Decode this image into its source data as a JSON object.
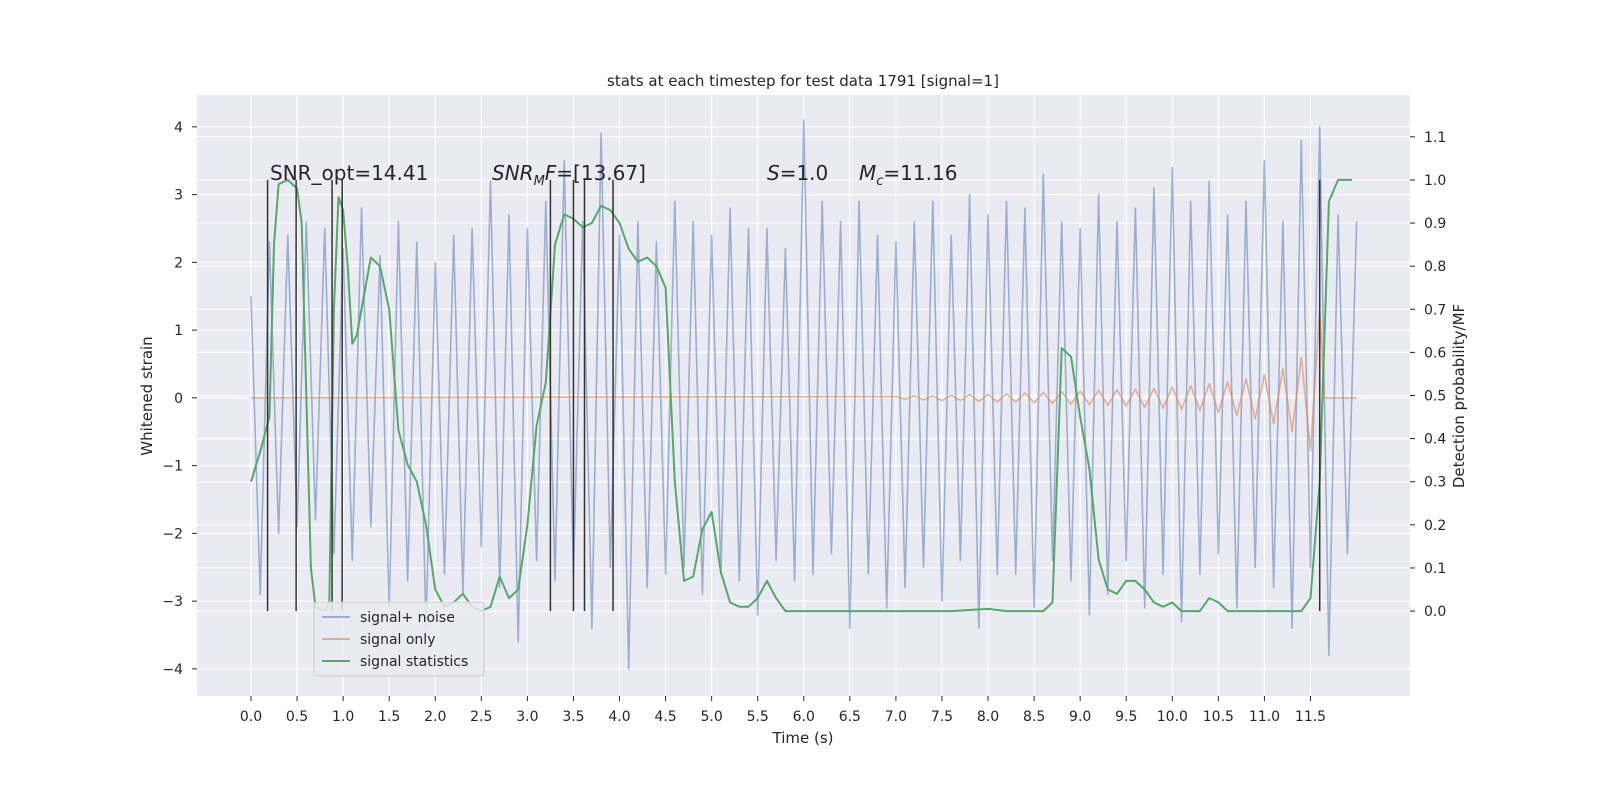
{
  "chart_data": {
    "type": "line",
    "title": "stats at each timestep for test data 1791 [signal=1]",
    "xlabel": "Time (s)",
    "ylabel": "Whitened strain",
    "y2label": "Detection probability/MF",
    "xlim": [
      -0.586,
      12.58
    ],
    "ylim": [
      -4.4,
      4.47
    ],
    "y2lim": [
      -0.197,
      1.197
    ],
    "xticks": [
      {
        "value": 0,
        "label": "0.0"
      },
      0.5,
      {
        "value": 1,
        "label": "1.0"
      },
      1.5,
      {
        "value": 2,
        "label": "2.0"
      },
      2.5,
      {
        "value": 3,
        "label": "3.0"
      },
      3.5,
      {
        "value": 4,
        "label": "4.0"
      },
      4.5,
      {
        "value": 5,
        "label": "5.0"
      },
      5.5,
      {
        "value": 6,
        "label": "6.0"
      },
      6.5,
      {
        "value": 7,
        "label": "7.0"
      },
      7.5,
      {
        "value": 8,
        "label": "8.0"
      },
      8.5,
      {
        "value": 9,
        "label": "9.0"
      },
      9.5,
      {
        "value": 10,
        "label": "10.0"
      },
      10.5,
      {
        "value": 11,
        "label": "11.0"
      },
      11.5
    ],
    "yticks": [
      {
        "value": -4,
        "label": "−4"
      },
      {
        "value": -3,
        "label": "−3"
      },
      {
        "value": -2,
        "label": "−2"
      },
      {
        "value": -1,
        "label": "−1"
      },
      0,
      1,
      2,
      3,
      4
    ],
    "y2ticks": [
      {
        "value": 0,
        "label": "0.0"
      },
      0.1,
      0.2,
      0.3,
      0.4,
      0.5,
      0.6,
      0.7,
      0.8,
      0.9,
      {
        "value": 1,
        "label": "1.0"
      },
      1.1
    ],
    "grid": true,
    "legend": "lower left",
    "annotations": [
      [
        "SNR_opt=14.41"
      ],
      [
        "SNR",
        "M",
        "F",
        "=[13.67]"
      ],
      [
        "S",
        "=1.0"
      ],
      [
        "M",
        "c",
        "=11.16"
      ]
    ],
    "vlines": {
      "x": [
        0.18,
        0.49,
        0.88,
        0.99,
        3.25,
        3.5,
        3.62,
        3.93,
        11.6
      ],
      "ymin": 0,
      "ymax": 1,
      "axis": "y2",
      "color": "#333333"
    },
    "series": [
      {
        "name": "signal+ noise",
        "color": "#4c72b0",
        "opacity": 0.5,
        "x": [
          0,
          0.1,
          0.2,
          0.3,
          0.4,
          0.5,
          0.6,
          0.7,
          0.8,
          0.9,
          1,
          1.1,
          1.2,
          1.3,
          1.4,
          1.5,
          1.6,
          1.7,
          1.8,
          1.9,
          2,
          2.1,
          2.2,
          2.3,
          2.4,
          2.5,
          2.6,
          2.7,
          2.8,
          2.9,
          3,
          3.1,
          3.2,
          3.3,
          3.4,
          3.5,
          3.6,
          3.7,
          3.8,
          3.9,
          4,
          4.1,
          4.2,
          4.3,
          4.4,
          4.5,
          4.6,
          4.7,
          4.8,
          4.9,
          5,
          5.1,
          5.2,
          5.3,
          5.4,
          5.5,
          5.6,
          5.7,
          5.8,
          5.9,
          6,
          6.1,
          6.2,
          6.3,
          6.4,
          6.5,
          6.6,
          6.7,
          6.8,
          6.9,
          7,
          7.1,
          7.2,
          7.3,
          7.4,
          7.5,
          7.6,
          7.7,
          7.8,
          7.9,
          8,
          8.1,
          8.2,
          8.3,
          8.4,
          8.5,
          8.6,
          8.7,
          8.8,
          8.9,
          9,
          9.1,
          9.2,
          9.3,
          9.4,
          9.5,
          9.6,
          9.7,
          9.8,
          9.9,
          10,
          10.1,
          10.2,
          10.3,
          10.4,
          10.5,
          10.6,
          10.7,
          10.8,
          10.9,
          11,
          11.1,
          11.2,
          11.3,
          11.4,
          11.5,
          11.6,
          11.7,
          11.8,
          11.9,
          12
        ],
        "values": [
          1.5,
          -2.9,
          2.3,
          -2.0,
          2.4,
          -1.9,
          2.6,
          -1.8,
          2.5,
          -2.3,
          2.2,
          -2.4,
          2.8,
          -1.9,
          2.1,
          -3.1,
          2.6,
          -2.7,
          2.3,
          -3.4,
          2.0,
          -2.6,
          2.4,
          -2.9,
          2.5,
          -2.2,
          3.2,
          -2.8,
          2.7,
          -3.6,
          2.5,
          -2.4,
          2.9,
          -2.7,
          3.5,
          -2.6,
          2.6,
          -3.4,
          3.9,
          -2.5,
          2.4,
          -4.0,
          2.6,
          -2.8,
          2.3,
          -2.6,
          2.9,
          -2.5,
          2.6,
          -2.9,
          2.4,
          -2.6,
          2.8,
          -2.7,
          2.5,
          -3.2,
          2.5,
          -2.4,
          2.2,
          -2.7,
          4.1,
          -2.6,
          2.9,
          -2.3,
          2.6,
          -3.4,
          2.9,
          -2.6,
          2.4,
          -3.1,
          2.3,
          -2.8,
          2.6,
          -2.5,
          2.9,
          -3.0,
          2.4,
          -2.4,
          3.0,
          -3.4,
          2.7,
          -2.6,
          2.9,
          -2.6,
          2.8,
          -3.1,
          3.3,
          -2.4,
          2.6,
          -2.7,
          2.5,
          -3.2,
          3.0,
          -2.9,
          2.6,
          -2.4,
          2.8,
          -3.1,
          3.1,
          -2.6,
          3.4,
          -3.3,
          2.9,
          -2.6,
          3.2,
          -2.3,
          2.7,
          -3.1,
          2.9,
          -2.5,
          3.5,
          -2.8,
          2.6,
          -3.4,
          3.8,
          -2.5,
          4.0,
          -3.8,
          2.7,
          -2.3,
          2.6
        ]
      },
      {
        "name": "signal only",
        "color": "#dd8452",
        "opacity": 0.6,
        "x": [
          0,
          7,
          7.1,
          7.2,
          7.3,
          7.4,
          7.5,
          7.6,
          7.7,
          7.8,
          7.9,
          8,
          8.1,
          8.2,
          8.3,
          8.4,
          8.5,
          8.6,
          8.7,
          8.8,
          8.9,
          9,
          9.1,
          9.2,
          9.3,
          9.4,
          9.5,
          9.6,
          9.7,
          9.8,
          9.9,
          10,
          10.1,
          10.2,
          10.3,
          10.4,
          10.5,
          10.6,
          10.7,
          10.8,
          10.9,
          11,
          11.1,
          11.2,
          11.3,
          11.4,
          11.5,
          11.6,
          11.65,
          12
        ],
        "values": [
          0,
          0.02,
          -0.02,
          0.03,
          -0.03,
          0.03,
          -0.04,
          0.04,
          -0.04,
          0.05,
          -0.05,
          0.05,
          -0.06,
          0.06,
          -0.06,
          0.07,
          -0.07,
          0.08,
          -0.08,
          0.09,
          -0.09,
          0.1,
          -0.1,
          0.11,
          -0.11,
          0.12,
          -0.12,
          0.13,
          -0.14,
          0.14,
          -0.15,
          0.16,
          -0.17,
          0.18,
          -0.19,
          0.21,
          -0.22,
          0.24,
          -0.26,
          0.28,
          -0.31,
          0.34,
          -0.38,
          0.43,
          -0.5,
          0.6,
          -0.78,
          1.3,
          0,
          0
        ]
      },
      {
        "name": "signal statistics",
        "color": "#55a868",
        "opacity": 1,
        "axis": "y2",
        "x": [
          0,
          0.1,
          0.2,
          0.25,
          0.3,
          0.4,
          0.5,
          0.55,
          0.6,
          0.65,
          0.7,
          0.8,
          0.85,
          0.9,
          0.95,
          1,
          1.05,
          1.1,
          1.15,
          1.2,
          1.3,
          1.4,
          1.5,
          1.6,
          1.7,
          1.8,
          1.9,
          2,
          2.1,
          2.2,
          2.3,
          2.4,
          2.5,
          2.6,
          2.7,
          2.8,
          2.9,
          3,
          3.1,
          3.2,
          3.3,
          3.4,
          3.5,
          3.6,
          3.7,
          3.8,
          3.9,
          4,
          4.1,
          4.2,
          4.3,
          4.4,
          4.5,
          4.6,
          4.7,
          4.8,
          4.9,
          5,
          5.1,
          5.2,
          5.3,
          5.4,
          5.5,
          5.6,
          5.7,
          5.8,
          6,
          7,
          7.6,
          8,
          8.2,
          8.6,
          8.7,
          8.8,
          8.9,
          9,
          9.1,
          9.2,
          9.3,
          9.4,
          9.5,
          9.6,
          9.7,
          9.8,
          9.9,
          10,
          10.1,
          10.2,
          10.3,
          10.4,
          10.5,
          10.6,
          11,
          11.4,
          11.5,
          11.6,
          11.7,
          11.8,
          11.95
        ],
        "values": [
          0.3,
          0.37,
          0.45,
          0.85,
          0.99,
          1.0,
          0.98,
          0.9,
          0.5,
          0.1,
          0.01,
          0.0,
          0.02,
          0.7,
          0.96,
          0.93,
          0.8,
          0.62,
          0.64,
          0.7,
          0.82,
          0.8,
          0.7,
          0.42,
          0.34,
          0.3,
          0.2,
          0.05,
          0.01,
          0.02,
          0.04,
          0.01,
          0.0,
          0.01,
          0.08,
          0.03,
          0.05,
          0.2,
          0.43,
          0.53,
          0.85,
          0.92,
          0.91,
          0.89,
          0.9,
          0.94,
          0.93,
          0.9,
          0.84,
          0.81,
          0.82,
          0.8,
          0.75,
          0.3,
          0.07,
          0.08,
          0.19,
          0.23,
          0.09,
          0.02,
          0.01,
          0.01,
          0.03,
          0.07,
          0.03,
          0.0,
          0.0,
          0.0,
          0.0,
          0.005,
          0.0,
          0.0,
          0.02,
          0.61,
          0.59,
          0.45,
          0.33,
          0.12,
          0.05,
          0.04,
          0.07,
          0.07,
          0.05,
          0.02,
          0.01,
          0.02,
          0.0,
          0.0,
          0.0,
          0.03,
          0.02,
          0.0,
          0.0,
          0.0,
          0.03,
          0.3,
          0.95,
          1.0,
          1.0
        ]
      }
    ]
  }
}
